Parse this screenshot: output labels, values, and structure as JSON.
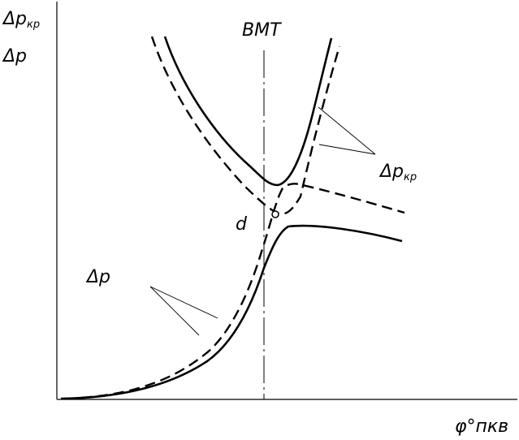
{
  "y_axis_labels": {
    "top": "Δp",
    "top_sub": "кр",
    "bottom": "Δp"
  },
  "x_axis_label": {
    "text": "φ°пкв"
  },
  "vertical_marker": {
    "label": "ВМТ"
  },
  "point": {
    "label": "d"
  },
  "callouts": {
    "dp_cr": {
      "main": "Δp",
      "sub": "кр"
    },
    "dp": {
      "main": "Δp"
    }
  },
  "colors": {
    "ink": "#000000",
    "background": "#ffffff"
  }
}
